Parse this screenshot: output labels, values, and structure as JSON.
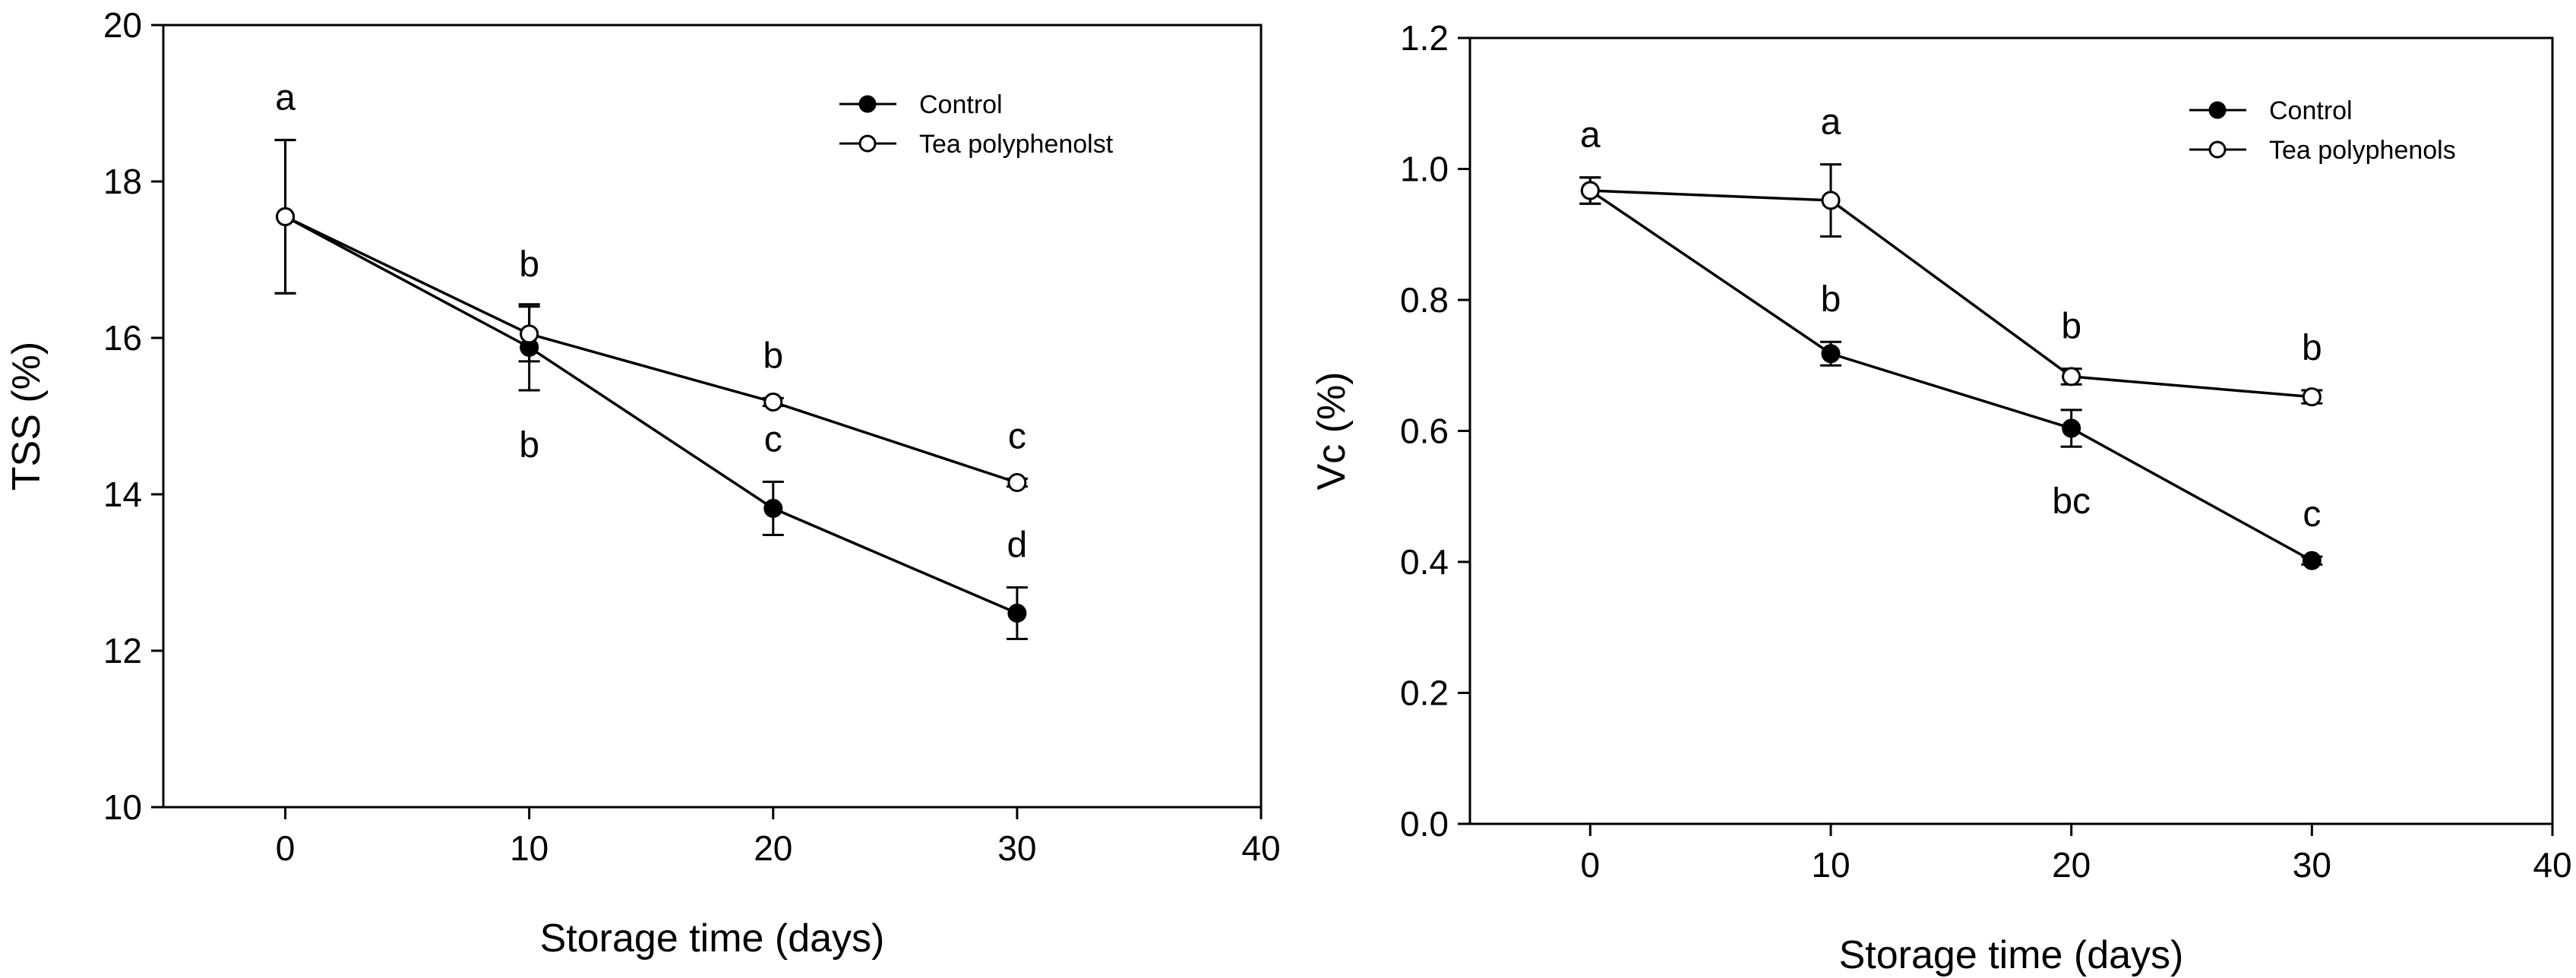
{
  "chart_data": [
    {
      "type": "line",
      "xlabel": "Storage time (days)",
      "ylabel": "TSS (%)",
      "xlim": [
        -5,
        40
      ],
      "ylim": [
        10,
        20
      ],
      "xticks": [
        0,
        10,
        20,
        30,
        40
      ],
      "yticks": [
        10,
        12,
        14,
        16,
        18,
        20
      ],
      "x_tick_labels": [
        "0",
        "10",
        "20",
        "30",
        "40"
      ],
      "y_tick_labels": [
        "10",
        "12",
        "14",
        "16",
        "18",
        "20"
      ],
      "legend_position": "top-right",
      "series": [
        {
          "name": "Control",
          "marker": "filled-circle",
          "x": [
            0,
            10,
            20,
            30
          ],
          "values": [
            17.55,
            15.88,
            13.82,
            12.48
          ],
          "errors": [
            0.98,
            0.55,
            0.34,
            0.33
          ],
          "sig_labels": [
            "a",
            "b",
            "c",
            "d"
          ]
        },
        {
          "name": "Tea polyphenolst",
          "marker": "open-circle",
          "x": [
            0,
            10,
            20,
            30
          ],
          "values": [
            17.55,
            16.05,
            15.18,
            14.15
          ],
          "errors": [
            0.98,
            0.35,
            0.05,
            0.05
          ],
          "sig_labels": [
            "a",
            "b",
            "b",
            "c"
          ]
        }
      ]
    },
    {
      "type": "line",
      "xlabel": "Storage time (days)",
      "ylabel": "Vc (%)",
      "xlim": [
        -5,
        40
      ],
      "ylim": [
        0,
        1.2
      ],
      "xticks": [
        0,
        10,
        20,
        30,
        40
      ],
      "yticks": [
        0,
        0.2,
        0.4,
        0.6,
        0.8,
        1.0,
        1.2
      ],
      "x_tick_labels": [
        "0",
        "10",
        "20",
        "30",
        "40"
      ],
      "y_tick_labels": [
        "0.0",
        "0.2",
        "0.4",
        "0.6",
        "0.8",
        "1.0",
        "1.2"
      ],
      "legend_position": "top-right",
      "series": [
        {
          "name": "Control",
          "marker": "filled-circle",
          "x": [
            0,
            10,
            20,
            30
          ],
          "values": [
            0.967,
            0.718,
            0.604,
            0.402
          ],
          "errors": [
            0.02,
            0.018,
            0.028,
            0.006
          ],
          "sig_labels": [
            "a",
            "b",
            "bc",
            "c"
          ]
        },
        {
          "name": "Tea polyphenols",
          "marker": "open-circle",
          "x": [
            0,
            10,
            20,
            30
          ],
          "values": [
            0.967,
            0.952,
            0.683,
            0.652
          ],
          "errors": [
            0.02,
            0.055,
            0.012,
            0.01
          ],
          "sig_labels": [
            "a",
            "a",
            "b",
            "b"
          ]
        }
      ]
    }
  ]
}
